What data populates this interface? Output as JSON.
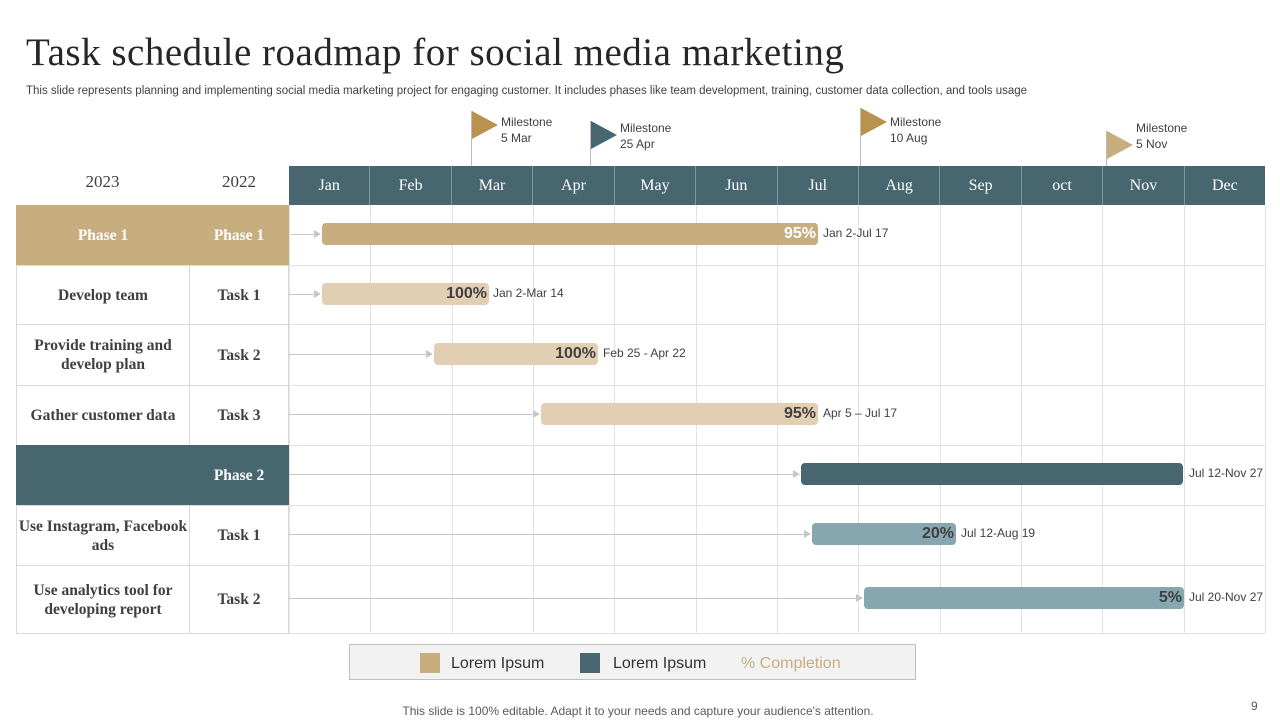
{
  "title": "Task schedule roadmap for social media marketing",
  "subtitle": "This slide represents planning and implementing social media marketing project for engaging customer. It includes phases like team development, training, customer data collection, and tools usage",
  "milestones": [
    {
      "label": "Milestone",
      "date": "5 Mar",
      "color": "#b9924e"
    },
    {
      "label": "Milestone",
      "date": "25 Apr",
      "color": "#476670"
    },
    {
      "label": "Milestone",
      "date": "10 Aug",
      "color": "#b9924e"
    },
    {
      "label": "Milestone",
      "date": "5 Nov",
      "color": "#c8ad7f"
    }
  ],
  "years": [
    "2023",
    "2022"
  ],
  "months": [
    "Jan",
    "Feb",
    "Mar",
    "Apr",
    "May",
    "Jun",
    "Jul",
    "Aug",
    "Sep",
    "oct",
    "Nov",
    "Dec"
  ],
  "rows": [
    {
      "col1": "Phase 1",
      "col2": "Phase 1",
      "type": "phase1"
    },
    {
      "col1": "Develop team",
      "col2": "Task 1",
      "type": "task"
    },
    {
      "col1": "Provide training and develop plan",
      "col2": "Task 2",
      "type": "task"
    },
    {
      "col1": "Gather customer data",
      "col2": "Task 3",
      "type": "task"
    },
    {
      "col1": "",
      "col2": "Phase 2",
      "type": "phase2"
    },
    {
      "col1": "Use Instagram, Facebook ads",
      "col2": "Task 1",
      "type": "task"
    },
    {
      "col1": "Use analytics tool for developing report",
      "col2": "Task 2",
      "type": "task"
    }
  ],
  "bars": [
    {
      "start_month": 0.4,
      "end_month": 6.5,
      "percent": "95%",
      "range": "Jan 2-Jul 17",
      "color": "#c8ad7f",
      "text_color": "#ffffff"
    },
    {
      "start_month": 0.4,
      "end_month": 2.45,
      "percent": "100%",
      "range": "Jan 2-Mar 14",
      "color": "#e2cfb3",
      "text_color": "#404040"
    },
    {
      "start_month": 1.78,
      "end_month": 3.8,
      "percent": "100%",
      "range": "Feb 25 - Apr 22",
      "color": "#e2cfb3",
      "text_color": "#404040"
    },
    {
      "start_month": 3.1,
      "end_month": 6.5,
      "percent": "95%",
      "range": "Apr 5 – Jul 17",
      "color": "#e2cfb3",
      "text_color": "#404040"
    },
    {
      "start_month": 6.3,
      "end_month": 11.0,
      "percent": "",
      "range": "Jul 12-Nov 27",
      "color": "#476670",
      "text_color": "#ffffff"
    },
    {
      "start_month": 6.43,
      "end_month": 8.2,
      "percent": "20%",
      "range": "Jul 12-Aug 19",
      "color": "#86a7b0",
      "text_color": "#404040"
    },
    {
      "start_month": 7.07,
      "end_month": 11.0,
      "percent": "5%",
      "range": "Jul 20-Nov 27",
      "color": "#86a7b0",
      "text_color": "#404040"
    }
  ],
  "legend": {
    "item1": {
      "label": "Lorem Ipsum",
      "color": "#c8ad7f"
    },
    "item2": {
      "label": "Lorem Ipsum",
      "color": "#476670"
    },
    "completion": "% Completion"
  },
  "footer": "This slide is 100% editable. Adapt it to your needs and capture your audience's attention.",
  "page_number": "9"
}
